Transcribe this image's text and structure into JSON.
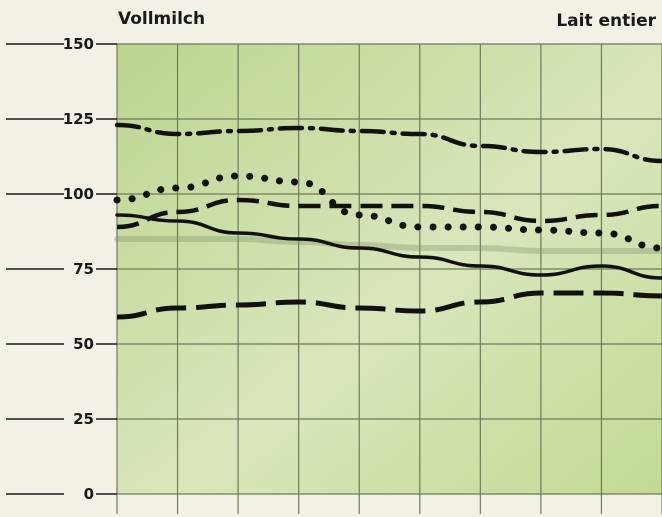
{
  "chart_data": {
    "type": "line",
    "title_left": "Vollmilch",
    "title_right": "Lait entier",
    "xlabel": "",
    "ylabel": "",
    "ylim": [
      0,
      150
    ],
    "yticks": [
      0,
      25,
      50,
      75,
      100,
      125,
      150
    ],
    "ytick_labels": [
      "0",
      "25",
      "50",
      "75",
      "100",
      "125",
      "150"
    ],
    "x": [
      0,
      1,
      2,
      3,
      4,
      5,
      6,
      7,
      8,
      9
    ],
    "grid": true,
    "background_color": "#c8dca0",
    "line_color": "#111111",
    "series": [
      {
        "style": "dash-dot",
        "values": [
          123,
          120,
          121,
          122,
          121,
          120,
          116,
          114,
          115,
          111
        ]
      },
      {
        "style": "dotted",
        "values": [
          98,
          102,
          106,
          104,
          93,
          89,
          89,
          88,
          87,
          82
        ]
      },
      {
        "style": "dashed",
        "values": [
          89,
          94,
          98,
          96,
          96,
          96,
          94,
          91,
          93,
          96
        ]
      },
      {
        "style": "solid",
        "values": [
          93,
          91,
          87,
          85,
          82,
          79,
          76,
          73,
          76,
          72
        ]
      },
      {
        "style": "solid-grey",
        "values": [
          85,
          85,
          85,
          84,
          83,
          82,
          82,
          81,
          81,
          81
        ]
      },
      {
        "style": "long-dash",
        "values": [
          59,
          62,
          63,
          64,
          62,
          61,
          64,
          67,
          67,
          66
        ]
      }
    ]
  }
}
